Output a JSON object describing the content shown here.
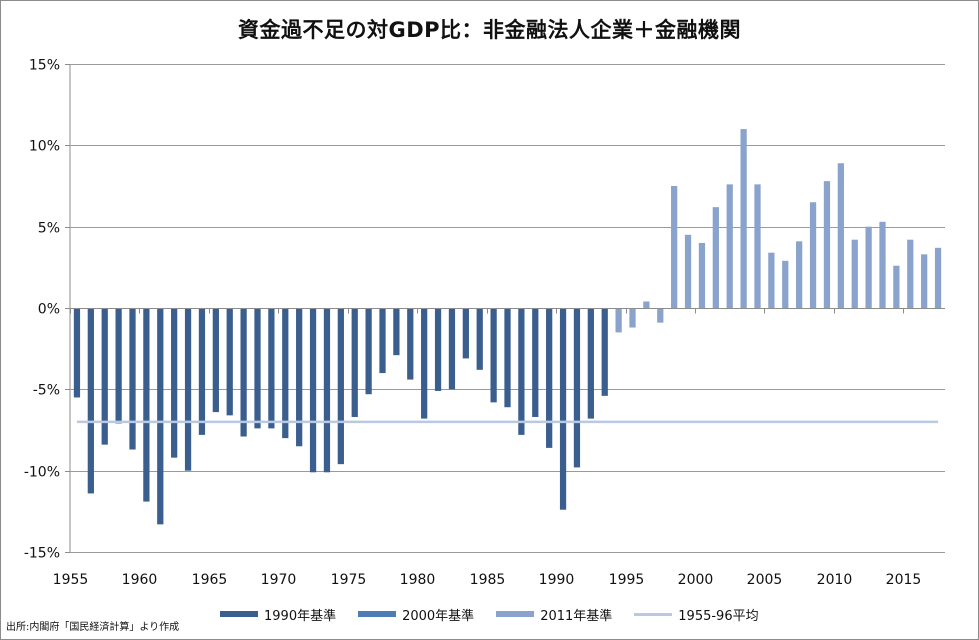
{
  "colors": {
    "s1990": "#3a5f8f",
    "s2000": "#4e7db5",
    "s2011": "#8aa3cd",
    "avg": "#b9c9e2",
    "grid": "#9a9a9a",
    "axis": "#8c8c8c"
  },
  "source": "出所:内閣府「国民経済計算」より作成",
  "chart_data": {
    "type": "bar",
    "title": "資金過不足の対GDP比：非金融法人企業＋金融機関",
    "xlabel": "",
    "ylabel": "",
    "ylim": [
      -15,
      15
    ],
    "yticks": [
      15,
      10,
      5,
      0,
      -5,
      -10,
      -15
    ],
    "ytick_labels": [
      "15%",
      "10%",
      "5%",
      "0%",
      "-5%",
      "-10%",
      "-15%"
    ],
    "xlim": [
      1955,
      2017
    ],
    "xticks": [
      1955,
      1960,
      1965,
      1970,
      1975,
      1980,
      1985,
      1990,
      1995,
      2000,
      2005,
      2010,
      2015
    ],
    "xtick_labels": [
      "1955",
      "1960",
      "1965",
      "1970",
      "1975",
      "1980",
      "1985",
      "1990",
      "1995",
      "2000",
      "2005",
      "2010",
      "2015"
    ],
    "series": [
      {
        "name": "1990年基準",
        "color_key": "s1990",
        "x": [
          1955,
          1956,
          1957,
          1958,
          1959,
          1960,
          1961,
          1962,
          1963,
          1964,
          1965,
          1966,
          1967,
          1968,
          1969,
          1970,
          1971,
          1972,
          1973,
          1974,
          1975,
          1976,
          1977,
          1978,
          1979,
          1980,
          1981,
          1982,
          1983,
          1984,
          1985,
          1986,
          1987,
          1988,
          1989,
          1990,
          1991,
          1992,
          1993,
          1994,
          1995,
          1996,
          1997,
          1998
        ],
        "values": [
          -5.5,
          -11.4,
          -8.4,
          -7.1,
          -8.7,
          -11.9,
          -13.3,
          -9.2,
          -10.0,
          -7.8,
          -6.4,
          -6.6,
          -7.9,
          -7.4,
          -7.4,
          -8.0,
          -8.5,
          -10.1,
          -10.1,
          -9.6,
          -6.7,
          -5.3,
          -4.0,
          -2.9,
          -4.4,
          -6.8,
          -5.1,
          -5.0,
          -3.1,
          -3.8,
          -5.8,
          -6.1,
          -7.8,
          -6.7,
          -8.6,
          -12.4,
          -9.8,
          -6.8,
          -5.4,
          null,
          null,
          null,
          null,
          null
        ]
      },
      {
        "name": "2000年基準",
        "color_key": "s2000",
        "x": [
          1980,
          1981,
          1982,
          1983,
          1984,
          1985,
          1986,
          1987,
          1988,
          1989,
          1990,
          1991,
          1992,
          1993,
          1994,
          1995,
          1996,
          1997,
          1998
        ],
        "values": [
          null,
          null,
          null,
          null,
          null,
          null,
          null,
          null,
          null,
          null,
          null,
          null,
          null,
          null,
          null,
          null,
          null,
          null,
          null
        ]
      },
      {
        "name": "2011年基準",
        "color_key": "s2011",
        "x": [
          1994,
          1995,
          1996,
          1997,
          1998,
          1999,
          2000,
          2001,
          2002,
          2003,
          2004,
          2005,
          2006,
          2007,
          2008,
          2009,
          2010,
          2011,
          2012,
          2013,
          2014,
          2015,
          2016,
          2017
        ],
        "values": [
          -1.5,
          -1.2,
          0.4,
          -0.9,
          7.5,
          4.5,
          4.0,
          6.2,
          7.6,
          11.0,
          7.6,
          3.4,
          2.9,
          4.1,
          6.5,
          7.8,
          8.9,
          4.2,
          5.0,
          5.3,
          2.6,
          4.2,
          3.3,
          3.7
        ]
      },
      {
        "name": "1955-96平均",
        "color_key": "avg",
        "type": "line",
        "x": [
          1955,
          2017
        ],
        "values": [
          -7.0,
          -7.0
        ]
      }
    ]
  }
}
